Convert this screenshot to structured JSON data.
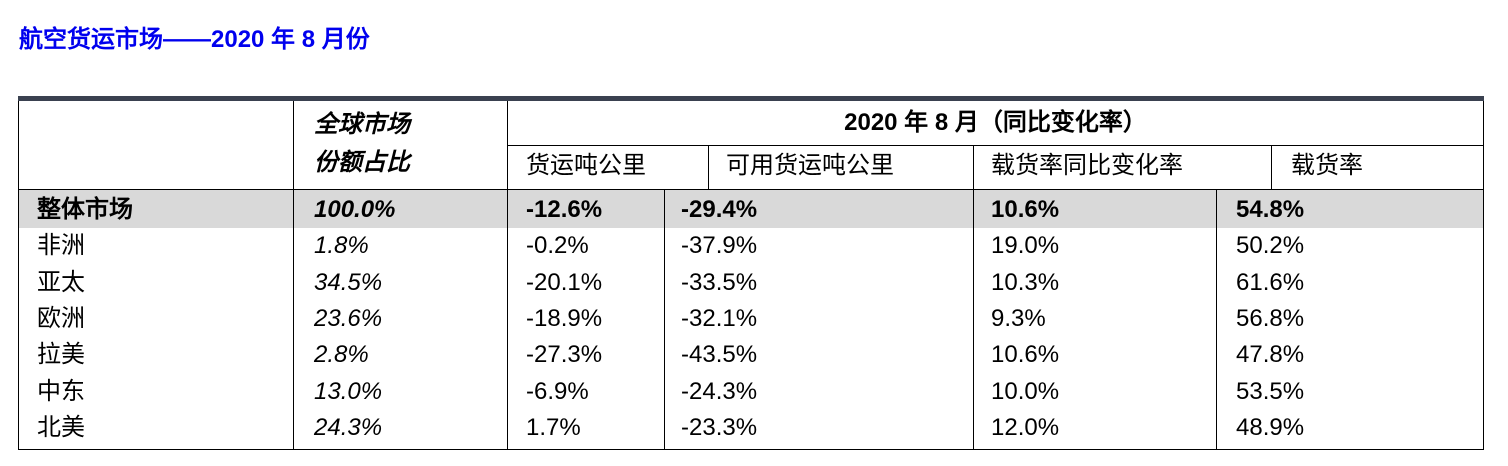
{
  "title": "航空货运市场——2020 年 8 月份",
  "table": {
    "header": {
      "share_line1": "全球市场",
      "share_line2": "份额占比",
      "period": "2020 年 8 月（同比变化率）",
      "cols": [
        "货运吨公里",
        "可用货运吨公里",
        "载货率同比变化率",
        "载货率"
      ]
    },
    "total_row": {
      "region": "整体市场",
      "share": "100.0%",
      "ctk": "-12.6%",
      "actk": "-29.4%",
      "lf_change": "10.6%",
      "lf": "54.8%"
    },
    "rows": [
      {
        "region": "非洲",
        "share": "1.8%",
        "ctk": "-0.2%",
        "actk": "-37.9%",
        "lf_change": "19.0%",
        "lf": "50.2%"
      },
      {
        "region": "亚太",
        "share": "34.5%",
        "ctk": "-20.1%",
        "actk": "-33.5%",
        "lf_change": "10.3%",
        "lf": "61.6%"
      },
      {
        "region": "欧洲",
        "share": "23.6%",
        "ctk": "-18.9%",
        "actk": "-32.1%",
        "lf_change": "9.3%",
        "lf": "56.8%"
      },
      {
        "region": "拉美",
        "share": "2.8%",
        "ctk": "-27.3%",
        "actk": "-43.5%",
        "lf_change": "10.6%",
        "lf": "47.8%"
      },
      {
        "region": "中东",
        "share": "13.0%",
        "ctk": "-6.9%",
        "actk": "-24.3%",
        "lf_change": "10.0%",
        "lf": "53.5%"
      },
      {
        "region": "北美",
        "share": "24.3%",
        "ctk": "1.7%",
        "actk": "-23.3%",
        "lf_change": "12.0%",
        "lf": "48.9%"
      }
    ]
  },
  "colors": {
    "title": "#0000ee",
    "top_rule": "#3a4150",
    "total_row_bg": "#d9d9d9"
  }
}
